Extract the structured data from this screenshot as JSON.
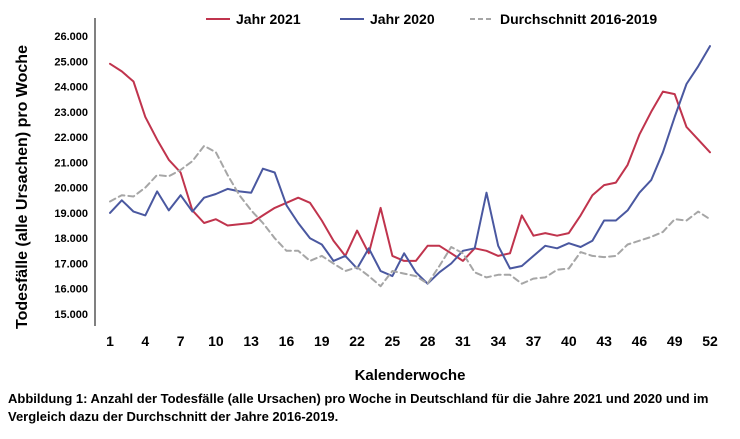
{
  "caption": "Abbildung 1: Anzahl der Todesfälle (alle Ursachen) pro Woche in Deutschland für die Jahre 2021 und 2020 und im Vergleich dazu der Durchschnitt der Jahre 2016-2019.",
  "chart_data": {
    "type": "line",
    "title": "",
    "xlabel": "Kalenderwoche",
    "ylabel": "Todesfälle (alle Ursachen) pro Woche",
    "ylim": [
      15000,
      26000
    ],
    "xlim": [
      1,
      52
    ],
    "x_ticks": [
      1,
      4,
      7,
      10,
      13,
      16,
      19,
      22,
      25,
      28,
      31,
      34,
      37,
      40,
      43,
      46,
      49,
      52
    ],
    "y_ticks": [
      15000,
      16000,
      17000,
      18000,
      19000,
      20000,
      21000,
      22000,
      23000,
      24000,
      25000,
      26000
    ],
    "y_tick_labels": [
      "15.000",
      "16.000",
      "17.000",
      "18.000",
      "19.000",
      "20.000",
      "21.000",
      "22.000",
      "23.000",
      "24.000",
      "25.000",
      "26.000"
    ],
    "grid": false,
    "legend_position": "top",
    "x": [
      1,
      2,
      3,
      4,
      5,
      6,
      7,
      8,
      9,
      10,
      11,
      12,
      13,
      14,
      15,
      16,
      17,
      18,
      19,
      20,
      21,
      22,
      23,
      24,
      25,
      26,
      27,
      28,
      29,
      30,
      31,
      32,
      33,
      34,
      35,
      36,
      37,
      38,
      39,
      40,
      41,
      42,
      43,
      44,
      45,
      46,
      47,
      48,
      49,
      50,
      51,
      52
    ],
    "series": [
      {
        "name": "Jahr 2021",
        "color": "#c0344d",
        "dash": "solid",
        "values": [
          24900,
          24600,
          24200,
          22800,
          21900,
          21100,
          20600,
          19100,
          18600,
          18750,
          18500,
          18550,
          18600,
          18900,
          19200,
          19400,
          19600,
          19400,
          18700,
          17900,
          17300,
          18300,
          17400,
          19200,
          17300,
          17100,
          17100,
          17700,
          17700,
          17400,
          17100,
          17600,
          17500,
          17300,
          17400,
          18900,
          18100,
          18200,
          18100,
          18200,
          18900,
          19700,
          20100,
          20200,
          20900,
          22100,
          23000,
          23800,
          23700,
          22400,
          21900,
          21400
        ]
      },
      {
        "name": "Jahr 2020",
        "color": "#4a58a0",
        "dash": "solid",
        "values": [
          19000,
          19500,
          19050,
          18900,
          19850,
          19100,
          19700,
          19050,
          19600,
          19750,
          19950,
          19850,
          19800,
          20750,
          20600,
          19300,
          18600,
          18000,
          17750,
          17100,
          17300,
          16800,
          17600,
          16700,
          16500,
          17400,
          16650,
          16200,
          16650,
          17000,
          17500,
          17600,
          19800,
          17700,
          16800,
          16900,
          17300,
          17700,
          17600,
          17800,
          17650,
          17900,
          18700,
          18700,
          19100,
          19800,
          20300,
          21400,
          22800,
          24100,
          24800,
          25600
        ]
      },
      {
        "name": "Durchschnitt 2016-2019",
        "color": "#a6a6a6",
        "dash": "dashed",
        "values": [
          19450,
          19700,
          19650,
          20000,
          20500,
          20450,
          20700,
          21050,
          21650,
          21400,
          20500,
          19700,
          19100,
          18600,
          18000,
          17500,
          17500,
          17100,
          17300,
          17000,
          16700,
          16850,
          16500,
          16100,
          16700,
          16600,
          16500,
          16200,
          16900,
          17650,
          17400,
          16650,
          16450,
          16550,
          16550,
          16200,
          16400,
          16450,
          16750,
          16800,
          17450,
          17300,
          17250,
          17300,
          17750,
          17900,
          18050,
          18250,
          18750,
          18700,
          19050,
          18750
        ]
      }
    ]
  }
}
